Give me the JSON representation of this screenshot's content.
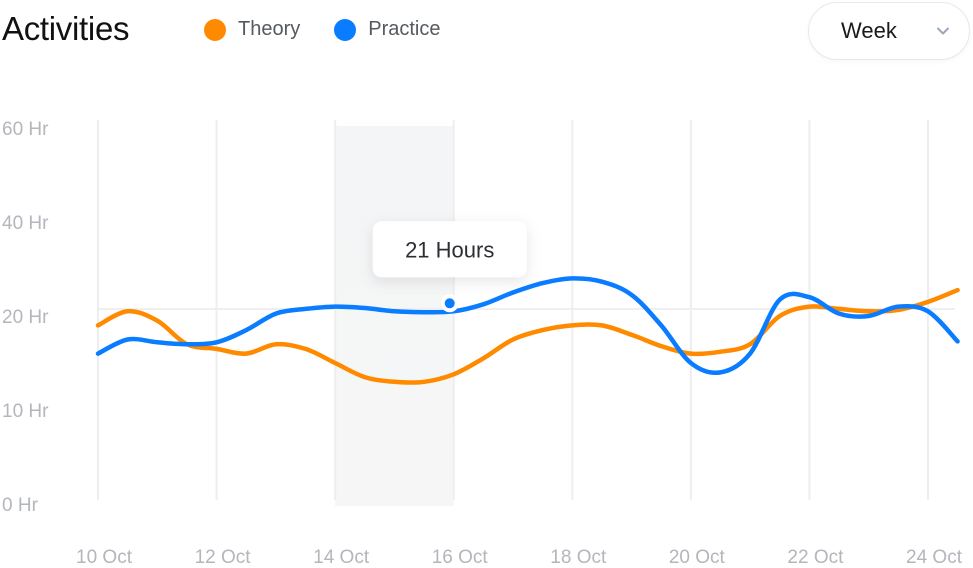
{
  "header": {
    "title": "Activities",
    "dropdown_value": "Week"
  },
  "legend": [
    {
      "label": "Theory",
      "color": "#FF8A00"
    },
    {
      "label": "Practice",
      "color": "#0A7CFF"
    }
  ],
  "tooltip": {
    "text": "21 Hours"
  },
  "chart_data": {
    "type": "line",
    "title": "Activities",
    "xlabel": "",
    "ylabel": "",
    "ylim": [
      0,
      60
    ],
    "y_ticks": [
      "0 Hr",
      "10 Hr",
      "20 Hr",
      "40 Hr",
      "60 Hr"
    ],
    "y_tick_values": [
      0,
      10,
      20,
      40,
      60
    ],
    "x": [
      10,
      10.5,
      11,
      11.5,
      12,
      12.5,
      13,
      13.5,
      14,
      14.5,
      15,
      15.5,
      16,
      16.5,
      17,
      17.5,
      18,
      18.5,
      19,
      19.5,
      20,
      20.5,
      21,
      21.5,
      22,
      22.5,
      23,
      23.5,
      24,
      24.5
    ],
    "x_tick_values": [
      10,
      12,
      14,
      16,
      18,
      20,
      22,
      24
    ],
    "x_ticks": [
      "10 Oct",
      "12 Oct",
      "14 Oct",
      "16 Oct",
      "18 Oct",
      "20 Oct",
      "22 Oct",
      "24 Oct"
    ],
    "highlight_range": [
      14,
      16
    ],
    "highlight_point": {
      "series": "Practice",
      "x": 16,
      "y": 21
    },
    "series": [
      {
        "name": "Theory",
        "color": "#FF8A00",
        "values": [
          19,
          21,
          19.5,
          17,
          16.5,
          16,
          17,
          16.5,
          15,
          13.5,
          13,
          13,
          13.8,
          15.5,
          17.5,
          18.5,
          19,
          19,
          18,
          16.8,
          16,
          16.2,
          17,
          20,
          22,
          21.5,
          21,
          21.3,
          23,
          25.5
        ]
      },
      {
        "name": "Practice",
        "color": "#0A7CFF",
        "values": [
          16,
          17.5,
          17.2,
          17,
          17.2,
          18.5,
          20.5,
          21.5,
          22,
          21.7,
          21,
          20.8,
          21,
          22.5,
          25,
          27,
          28,
          27.3,
          24.5,
          19,
          15,
          14,
          16,
          23.5,
          24,
          20.5,
          20,
          22,
          21,
          17.3
        ]
      }
    ],
    "grid": true,
    "legend_position": "top-left"
  }
}
